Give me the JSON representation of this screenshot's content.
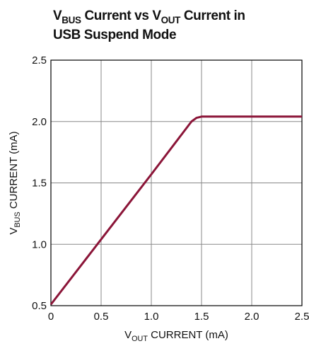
{
  "chart_data": {
    "type": "line",
    "title": [
      "V",
      "BUS",
      " Current vs V",
      "OUT",
      " Current in",
      "USB Suspend Mode"
    ],
    "xlabel": [
      "V",
      "OUT",
      " CURRENT (mA)"
    ],
    "ylabel": [
      "V",
      "BUS",
      " CURRENT (mA)"
    ],
    "x": [
      0,
      0.5,
      1.0,
      1.4,
      1.45,
      1.5,
      2.0,
      2.5
    ],
    "series": [
      {
        "name": "VBUS current",
        "color": "#8b1538",
        "values": [
          0.51,
          1.04,
          1.57,
          2.0,
          2.03,
          2.04,
          2.04,
          2.04
        ]
      }
    ],
    "xlim": [
      0,
      2.5
    ],
    "xticks": [
      0,
      0.5,
      {
        "value": 1.0,
        "label": "1.0"
      },
      1.5,
      {
        "value": 2.0,
        "label": "2.0"
      },
      2.5
    ],
    "ylim": [
      0.5,
      2.5
    ],
    "yticks": [
      0.5,
      {
        "value": 1.0,
        "label": "1.0"
      },
      1.5,
      {
        "value": 2.0,
        "label": "2.0"
      },
      2.5
    ],
    "grid": true
  }
}
